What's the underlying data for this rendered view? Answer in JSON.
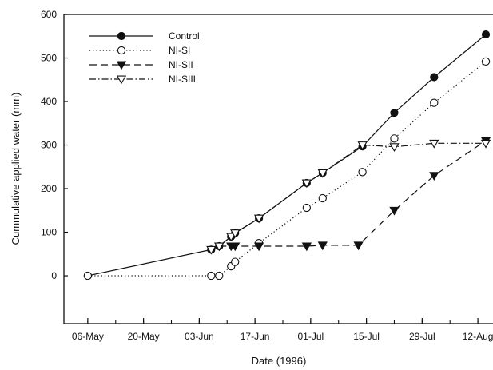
{
  "chart_data": {
    "type": "line",
    "title": "",
    "xlabel": "Date (1996)",
    "ylabel": "Cummulative applied water (mm)",
    "x_ticks": [
      "06-May",
      "20-May",
      "03-Jun",
      "17-Jun",
      "01-Jul",
      "15-Jul",
      "29-Jul",
      "12-Aug"
    ],
    "x_tick_dates": [
      "1996-05-06",
      "1996-05-20",
      "1996-06-03",
      "1996-06-17",
      "1996-07-01",
      "1996-07-15",
      "1996-07-29",
      "1996-08-12"
    ],
    "xlim": [
      "1996-04-30",
      "1996-08-16"
    ],
    "ylim": [
      -110,
      600
    ],
    "y_ticks": [
      0,
      100,
      200,
      300,
      400,
      500,
      600
    ],
    "grid": false,
    "legend_position": "top-left",
    "series": [
      {
        "name": "Control",
        "style": "solid",
        "marker": "filled-circle",
        "points": [
          [
            "1996-05-06",
            0
          ],
          [
            "1996-06-06",
            60
          ],
          [
            "1996-06-08",
            68
          ],
          [
            "1996-06-11",
            90
          ],
          [
            "1996-06-12",
            98
          ],
          [
            "1996-06-18",
            132
          ],
          [
            "1996-06-30",
            213
          ],
          [
            "1996-07-04",
            236
          ],
          [
            "1996-07-14",
            297
          ],
          [
            "1996-07-22",
            374
          ],
          [
            "1996-08-01",
            456
          ],
          [
            "1996-08-14",
            554
          ]
        ]
      },
      {
        "name": "NI-SI",
        "style": "dotted",
        "marker": "open-circle",
        "points": [
          [
            "1996-05-06",
            0
          ],
          [
            "1996-06-06",
            0
          ],
          [
            "1996-06-08",
            0
          ],
          [
            "1996-06-11",
            22
          ],
          [
            "1996-06-12",
            32
          ],
          [
            "1996-06-18",
            75
          ],
          [
            "1996-06-30",
            156
          ],
          [
            "1996-07-04",
            178
          ],
          [
            "1996-07-14",
            238
          ],
          [
            "1996-07-22",
            315
          ],
          [
            "1996-08-01",
            397
          ],
          [
            "1996-08-14",
            492
          ]
        ]
      },
      {
        "name": "NI-SII",
        "style": "dashed",
        "marker": "filled-triangle-down",
        "points": [
          [
            "1996-06-08",
            68
          ],
          [
            "1996-06-11",
            68
          ],
          [
            "1996-06-12",
            68
          ],
          [
            "1996-06-18",
            68
          ],
          [
            "1996-06-30",
            68
          ],
          [
            "1996-07-04",
            70
          ],
          [
            "1996-07-13",
            70
          ],
          [
            "1996-07-22",
            150
          ],
          [
            "1996-08-01",
            230
          ],
          [
            "1996-08-14",
            310
          ]
        ]
      },
      {
        "name": "NI-SIII",
        "style": "dash-dot",
        "marker": "open-triangle-down",
        "points": [
          [
            "1996-06-06",
            60
          ],
          [
            "1996-06-08",
            68
          ],
          [
            "1996-06-11",
            90
          ],
          [
            "1996-06-12",
            98
          ],
          [
            "1996-06-18",
            132
          ],
          [
            "1996-06-30",
            213
          ],
          [
            "1996-07-04",
            236
          ],
          [
            "1996-07-14",
            300
          ],
          [
            "1996-07-22",
            296
          ],
          [
            "1996-08-01",
            304
          ],
          [
            "1996-08-14",
            304
          ]
        ]
      }
    ]
  }
}
